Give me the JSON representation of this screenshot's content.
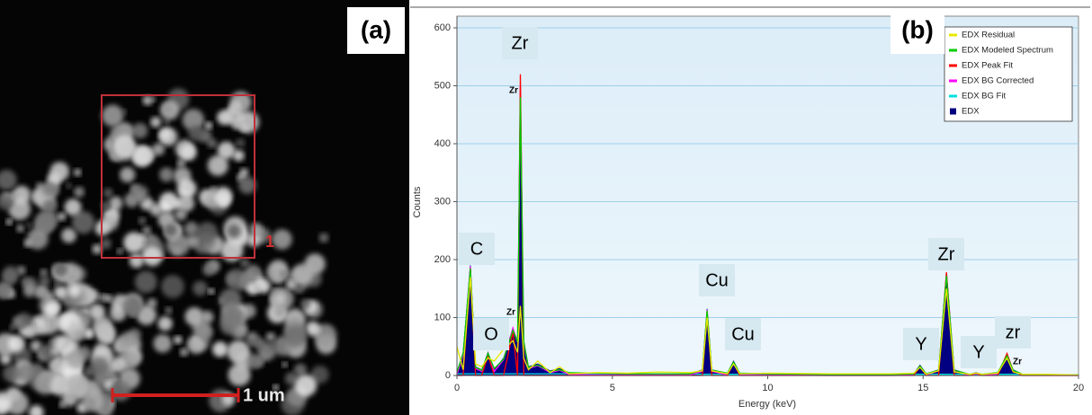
{
  "panel_a": {
    "label": "(a)",
    "roi_label": "1",
    "scale_bar": "1 um"
  },
  "chart_data": {
    "type": "line",
    "panel_label": "(b)",
    "x_label": "Energy (keV)",
    "y_label": "Counts",
    "xlim": [
      0,
      20
    ],
    "xticks": [
      0,
      5,
      10,
      15,
      20
    ],
    "ylim": [
      0,
      600
    ],
    "yticks": [
      0,
      100,
      200,
      300,
      400,
      500,
      600
    ],
    "grid": true,
    "legend": "upper right",
    "x": [
      0,
      0.2,
      0.43,
      0.6,
      0.8,
      1.0,
      1.2,
      1.5,
      1.8,
      1.95,
      2.04,
      2.15,
      2.3,
      2.6,
      3.0,
      3.3,
      3.6,
      4.5,
      5.5,
      6.5,
      7.5,
      7.9,
      8.05,
      8.2,
      8.7,
      8.9,
      9.1,
      10,
      12,
      14,
      14.7,
      14.9,
      15.1,
      15.5,
      15.75,
      16.0,
      16.5,
      16.7,
      16.9,
      17.4,
      17.7,
      17.9,
      18.2,
      19,
      20
    ],
    "series": [
      {
        "name": "EDX Residual",
        "color": "#e8e800",
        "values": [
          50,
          10,
          170,
          20,
          15,
          30,
          25,
          45,
          60,
          40,
          120,
          30,
          10,
          25,
          5,
          15,
          3,
          5,
          4,
          6,
          5,
          8,
          100,
          8,
          3,
          20,
          3,
          4,
          3,
          3,
          4,
          14,
          2,
          8,
          150,
          6,
          2,
          4,
          2,
          4,
          30,
          6,
          2,
          2,
          1
        ]
      },
      {
        "name": "EDX Modeled Spectrum",
        "color": "#00cc00",
        "values": [
          6,
          38,
          185,
          14,
          9,
          38,
          12,
          28,
          78,
          58,
          480,
          58,
          14,
          18,
          7,
          10,
          5,
          4,
          3,
          3,
          3,
          9,
          112,
          9,
          4,
          23,
          4,
          3,
          2,
          2,
          3,
          16,
          3,
          9,
          172,
          9,
          2,
          4,
          2,
          5,
          34,
          9,
          2,
          1,
          1
        ]
      },
      {
        "name": "EDX Peak Fit",
        "color": "#ff0000",
        "values": [
          0,
          0,
          185,
          0,
          0,
          35,
          0,
          0,
          75,
          0,
          520,
          0,
          0,
          0,
          0,
          0,
          0,
          0,
          0,
          0,
          0,
          0,
          110,
          0,
          0,
          22,
          0,
          0,
          0,
          0,
          0,
          15,
          0,
          0,
          178,
          0,
          0,
          4,
          0,
          0,
          38,
          8,
          0,
          0,
          0
        ]
      },
      {
        "name": "EDX BG Corrected",
        "color": "#ff00ff",
        "values": [
          2,
          35,
          188,
          12,
          7,
          37,
          7,
          27,
          82,
          57,
          500,
          57,
          12,
          17,
          5,
          9,
          2,
          1,
          1,
          1,
          1,
          7,
          113,
          7,
          1,
          22,
          1,
          1,
          0,
          0,
          1,
          16,
          1,
          8,
          176,
          8,
          0,
          3,
          0,
          3,
          36,
          8,
          0,
          0,
          0
        ]
      },
      {
        "name": "EDX BG Fit",
        "color": "#00e0e0",
        "values": [
          3,
          3,
          3,
          3,
          3,
          3,
          3,
          3,
          3,
          3,
          3,
          3,
          3,
          3,
          3,
          3,
          3,
          3,
          3,
          3,
          3,
          2,
          2,
          2,
          2,
          2,
          2,
          2,
          2,
          2,
          2,
          2,
          2,
          2,
          2,
          2,
          2,
          2,
          2,
          2,
          2,
          2,
          2,
          1,
          1
        ]
      },
      {
        "name": "EDX",
        "color": "#000080",
        "fill": true,
        "values": [
          5,
          40,
          190,
          15,
          10,
          40,
          10,
          30,
          80,
          60,
          410,
          60,
          15,
          20,
          8,
          12,
          5,
          4,
          3,
          3,
          3,
          10,
          115,
          10,
          4,
          25,
          4,
          3,
          2,
          2,
          3,
          18,
          3,
          10,
          175,
          10,
          2,
          5,
          2,
          5,
          35,
          10,
          2,
          1,
          1
        ]
      }
    ],
    "annotations": [
      "Zr",
      "Zr",
      "C",
      "O",
      "Zr",
      "Cu",
      "Cu",
      "Y",
      "Zr",
      "Y",
      "zr",
      "Zr"
    ]
  }
}
